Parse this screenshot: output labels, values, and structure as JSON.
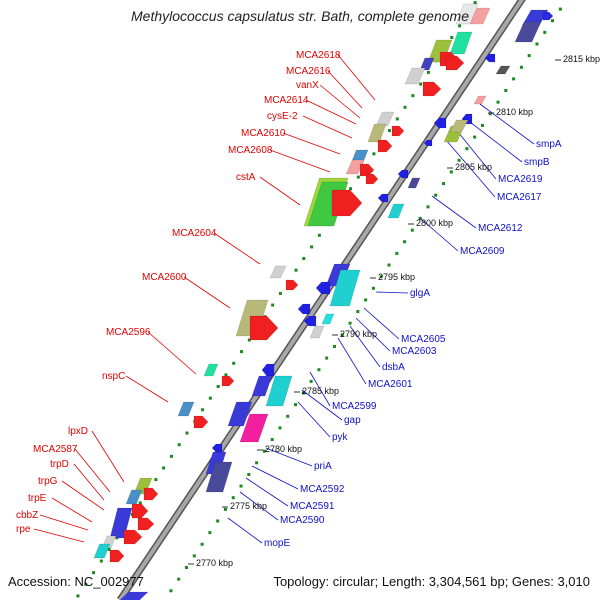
{
  "title": "Methylococcus capsulatus str. Bath, complete genome",
  "accession": "Accession: NC_002977",
  "topology": "Topology: circular; Length: 3,304,561 bp; Genes: 3,010",
  "colors": {
    "left_label": "#e00000",
    "right_label": "#1010c8",
    "backbone": "#8a8a8a",
    "dots": "#1a8a1a"
  },
  "kbp_markers": [
    "2770 kbp",
    "2775 kbp",
    "2780 kbp",
    "2785 kbp",
    "2790 kbp",
    "2795 kbp",
    "2800 kbp",
    "2805 kbp",
    "2810 kbp",
    "2815 kbp"
  ],
  "left_labels": [
    "MCA2618",
    "MCA2616",
    "vanX",
    "MCA2614",
    "cysE-2",
    "MCA2610",
    "MCA2608",
    "cstA",
    "MCA2604",
    "MCA2600",
    "MCA2596",
    "nspC",
    "lpxD",
    "MCA2587",
    "trpD",
    "trpG",
    "trpE",
    "cbbZ",
    "rpe"
  ],
  "right_labels": [
    "smpA",
    "smpB",
    "MCA2619",
    "MCA2617",
    "MCA2612",
    "MCA2609",
    "glgA",
    "MCA2605",
    "MCA2603",
    "dsbA",
    "MCA2601",
    "MCA2599",
    "gap",
    "pyk",
    "priA",
    "MCA2592",
    "MCA2591",
    "MCA2590",
    "mopE"
  ]
}
